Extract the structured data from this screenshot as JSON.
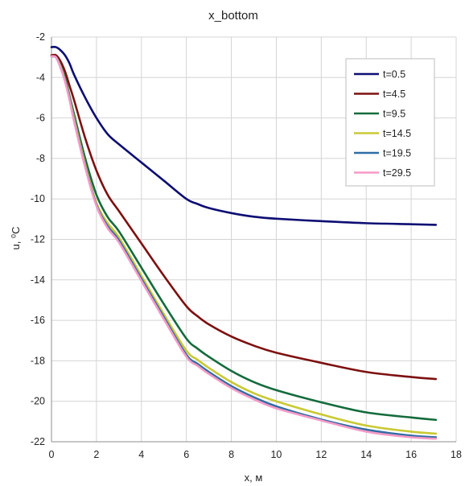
{
  "chart_data": {
    "type": "line",
    "title": "x_bottom",
    "xlabel": "x, м",
    "ylabel": "u, ⁰C",
    "xlim": [
      0,
      18
    ],
    "ylim": [
      -22,
      -2
    ],
    "xticks": [
      "0",
      "2",
      "4",
      "6",
      "8",
      "10",
      "12",
      "14",
      "16",
      "18"
    ],
    "yticks": [
      "-2",
      "-4",
      "-6",
      "-8",
      "-10",
      "-12",
      "-14",
      "-16",
      "-18",
      "-20",
      "-22"
    ],
    "grid": true,
    "legend_position": "top-right",
    "series": [
      {
        "name": "t=0.5",
        "color": "#0d0d73",
        "points": [
          [
            0,
            -2.5
          ],
          [
            0.2,
            -2.5
          ],
          [
            0.4,
            -2.65
          ],
          [
            0.6,
            -2.9
          ],
          [
            0.8,
            -3.3
          ],
          [
            1.0,
            -3.85
          ],
          [
            1.5,
            -5.0
          ],
          [
            2.0,
            -6.0
          ],
          [
            2.5,
            -6.8
          ],
          [
            3.0,
            -7.3
          ],
          [
            4.0,
            -8.2
          ],
          [
            5.0,
            -9.1
          ],
          [
            6.0,
            -10.0
          ],
          [
            6.5,
            -10.25
          ],
          [
            7.0,
            -10.45
          ],
          [
            8.0,
            -10.7
          ],
          [
            9.0,
            -10.88
          ],
          [
            10.0,
            -10.98
          ],
          [
            12.0,
            -11.1
          ],
          [
            14.0,
            -11.2
          ],
          [
            16.0,
            -11.25
          ],
          [
            17.1,
            -11.28
          ]
        ]
      },
      {
        "name": "t=4.5",
        "color": "#7d1010",
        "points": [
          [
            0,
            -2.9
          ],
          [
            0.2,
            -2.9
          ],
          [
            0.4,
            -3.2
          ],
          [
            0.6,
            -3.7
          ],
          [
            0.8,
            -4.4
          ],
          [
            1.0,
            -5.1
          ],
          [
            1.5,
            -7.0
          ],
          [
            2.0,
            -8.6
          ],
          [
            2.5,
            -9.8
          ],
          [
            3.0,
            -10.6
          ],
          [
            4.0,
            -12.2
          ],
          [
            5.0,
            -13.8
          ],
          [
            6.0,
            -15.3
          ],
          [
            6.5,
            -15.8
          ],
          [
            7.0,
            -16.2
          ],
          [
            8.0,
            -16.8
          ],
          [
            9.0,
            -17.25
          ],
          [
            10.0,
            -17.6
          ],
          [
            12.0,
            -18.1
          ],
          [
            14.0,
            -18.55
          ],
          [
            16.0,
            -18.8
          ],
          [
            17.1,
            -18.9
          ]
        ]
      },
      {
        "name": "t=9.5",
        "color": "#146b3c",
        "points": [
          [
            0,
            -2.95
          ],
          [
            0.2,
            -3.0
          ],
          [
            0.4,
            -3.4
          ],
          [
            0.6,
            -4.0
          ],
          [
            0.8,
            -4.9
          ],
          [
            1.0,
            -5.8
          ],
          [
            1.5,
            -8.0
          ],
          [
            2.0,
            -9.8
          ],
          [
            2.5,
            -10.9
          ],
          [
            3.0,
            -11.6
          ],
          [
            4.0,
            -13.4
          ],
          [
            5.0,
            -15.2
          ],
          [
            6.0,
            -16.9
          ],
          [
            6.5,
            -17.4
          ],
          [
            7.0,
            -17.8
          ],
          [
            8.0,
            -18.5
          ],
          [
            9.0,
            -19.05
          ],
          [
            10.0,
            -19.45
          ],
          [
            12.0,
            -20.05
          ],
          [
            14.0,
            -20.55
          ],
          [
            16.0,
            -20.8
          ],
          [
            17.1,
            -20.92
          ]
        ]
      },
      {
        "name": "t=14.5",
        "color": "#c9c934",
        "points": [
          [
            0,
            -2.95
          ],
          [
            0.2,
            -3.0
          ],
          [
            0.4,
            -3.45
          ],
          [
            0.6,
            -4.1
          ],
          [
            0.8,
            -5.0
          ],
          [
            1.0,
            -6.0
          ],
          [
            1.5,
            -8.3
          ],
          [
            2.0,
            -10.2
          ],
          [
            2.5,
            -11.2
          ],
          [
            3.0,
            -11.9
          ],
          [
            4.0,
            -13.8
          ],
          [
            5.0,
            -15.7
          ],
          [
            6.0,
            -17.5
          ],
          [
            6.5,
            -17.95
          ],
          [
            7.0,
            -18.35
          ],
          [
            8.0,
            -19.05
          ],
          [
            9.0,
            -19.6
          ],
          [
            10.0,
            -20.0
          ],
          [
            12.0,
            -20.65
          ],
          [
            14.0,
            -21.2
          ],
          [
            16.0,
            -21.5
          ],
          [
            17.1,
            -21.6
          ]
        ]
      },
      {
        "name": "t=19.5",
        "color": "#2e6da4",
        "points": [
          [
            0,
            -2.95
          ],
          [
            0.2,
            -3.0
          ],
          [
            0.4,
            -3.5
          ],
          [
            0.6,
            -4.15
          ],
          [
            0.8,
            -5.05
          ],
          [
            1.0,
            -6.1
          ],
          [
            1.5,
            -8.4
          ],
          [
            2.0,
            -10.3
          ],
          [
            2.5,
            -11.35
          ],
          [
            3.0,
            -12.05
          ],
          [
            4.0,
            -13.95
          ],
          [
            5.0,
            -15.85
          ],
          [
            6.0,
            -17.7
          ],
          [
            6.5,
            -18.15
          ],
          [
            7.0,
            -18.55
          ],
          [
            8.0,
            -19.25
          ],
          [
            9.0,
            -19.8
          ],
          [
            10.0,
            -20.25
          ],
          [
            12.0,
            -20.9
          ],
          [
            14.0,
            -21.4
          ],
          [
            16.0,
            -21.7
          ],
          [
            17.1,
            -21.78
          ]
        ]
      },
      {
        "name": "t=29.5",
        "color": "#f59ac8",
        "points": [
          [
            0,
            -2.95
          ],
          [
            0.2,
            -3.0
          ],
          [
            0.4,
            -3.5
          ],
          [
            0.6,
            -4.2
          ],
          [
            0.8,
            -5.1
          ],
          [
            1.0,
            -6.15
          ],
          [
            1.5,
            -8.45
          ],
          [
            2.0,
            -10.35
          ],
          [
            2.5,
            -11.45
          ],
          [
            3.0,
            -12.15
          ],
          [
            4.0,
            -14.05
          ],
          [
            5.0,
            -15.95
          ],
          [
            6.0,
            -17.8
          ],
          [
            6.5,
            -18.25
          ],
          [
            7.0,
            -18.65
          ],
          [
            8.0,
            -19.35
          ],
          [
            9.0,
            -19.9
          ],
          [
            10.0,
            -20.35
          ],
          [
            12.0,
            -20.95
          ],
          [
            14.0,
            -21.5
          ],
          [
            16.0,
            -21.78
          ],
          [
            17.1,
            -21.85
          ]
        ]
      }
    ]
  }
}
